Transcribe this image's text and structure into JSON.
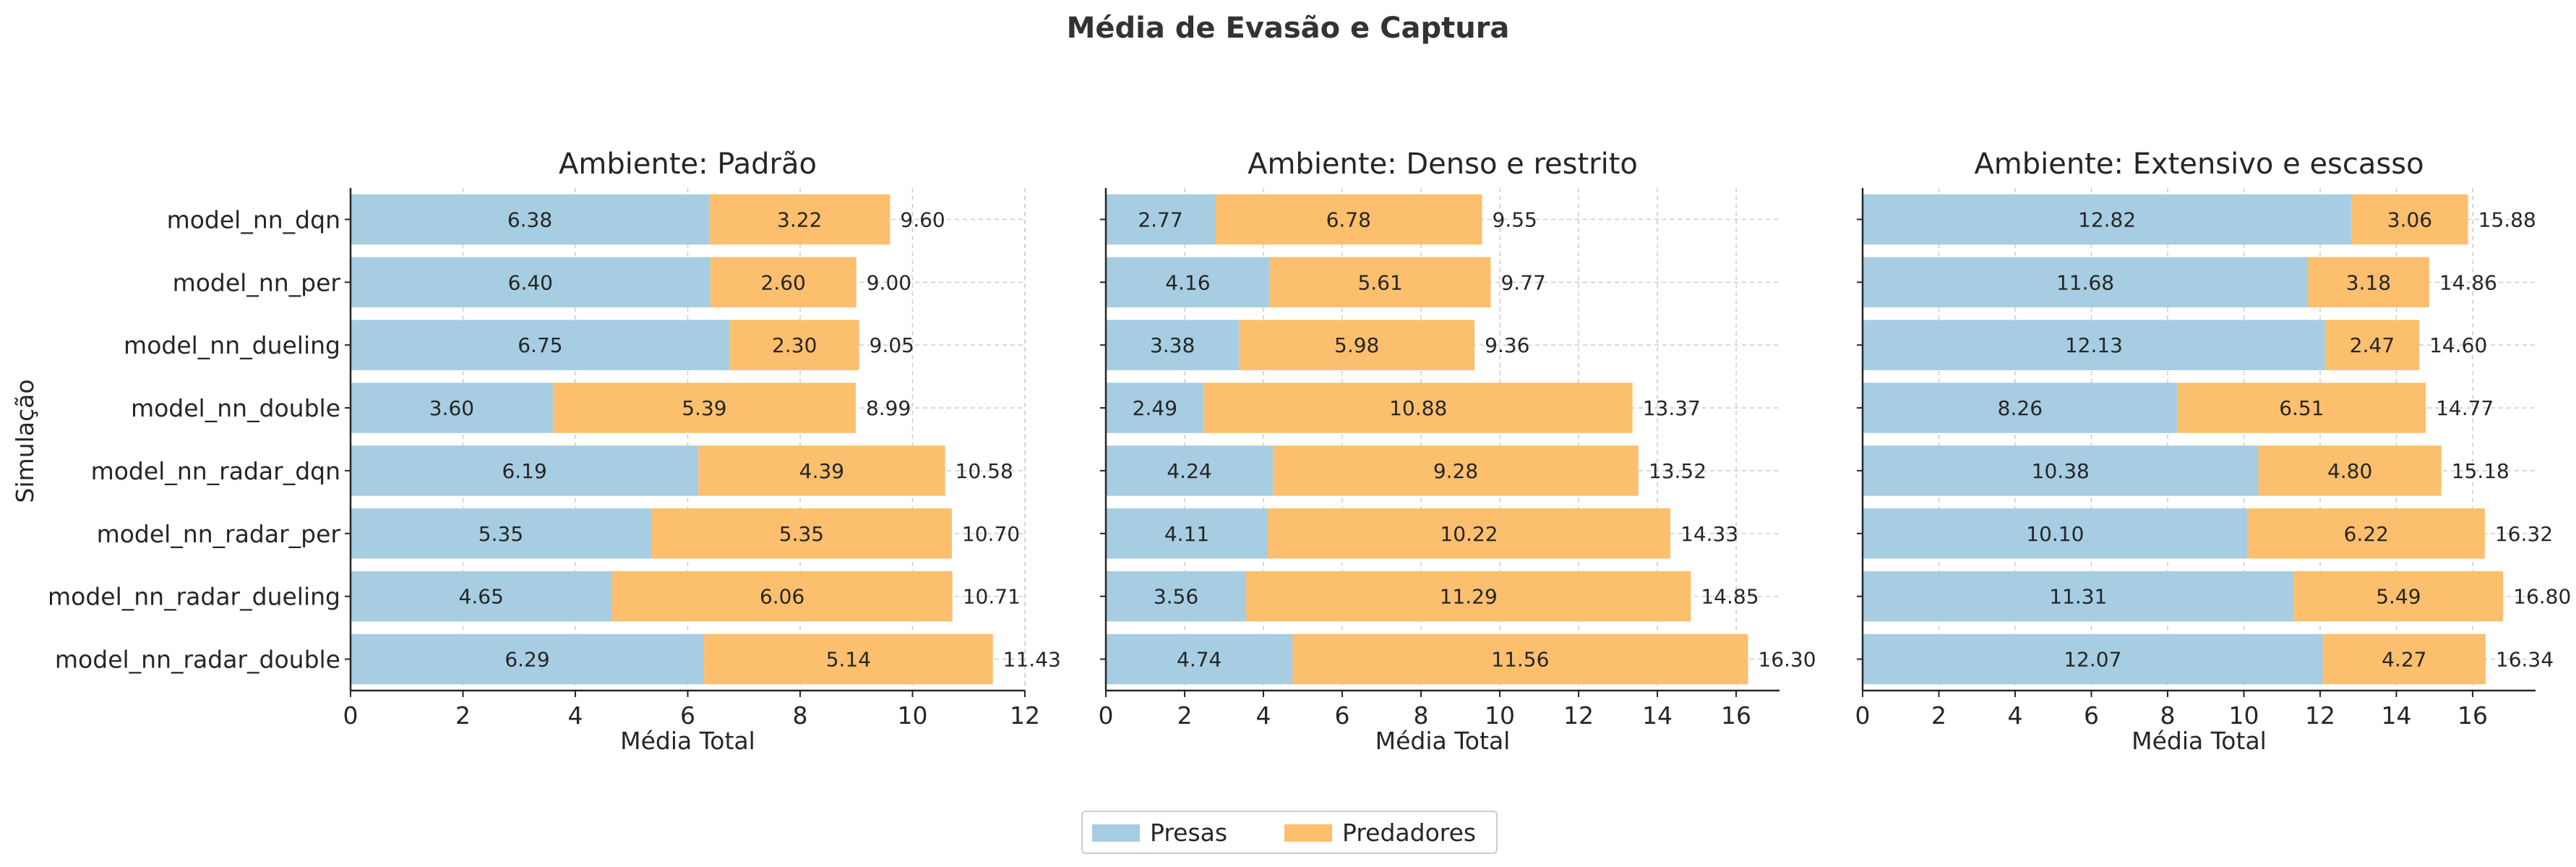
{
  "figure": {
    "title": "Média de Evasão e Captura",
    "ylabel": "Simulação",
    "legend": {
      "placement": "bottom-center",
      "entries": [
        {
          "label": "Presas",
          "color": "#a6cde2"
        },
        {
          "label": "Predadores",
          "color": "#fcbf6e"
        }
      ]
    }
  },
  "chart_data": [
    {
      "type": "bar",
      "orientation": "horizontal",
      "stacked": true,
      "title": "Ambiente: Padrão",
      "xlabel": "Média Total",
      "ylabel": "Simulação",
      "xlim": [
        0,
        12
      ],
      "xticks": [
        "0",
        "2",
        "4",
        "6",
        "8",
        "10",
        "12"
      ],
      "grid": true,
      "categories": [
        "model_nn_dqn",
        "model_nn_per",
        "model_nn_dueling",
        "model_nn_double",
        "model_nn_radar_dqn",
        "model_nn_radar_per",
        "model_nn_radar_dueling",
        "model_nn_radar_double"
      ],
      "series": [
        {
          "name": "Presas",
          "values": [
            6.38,
            6.4,
            6.75,
            3.6,
            6.19,
            5.35,
            4.65,
            6.29
          ],
          "labels": [
            "6.38",
            "6.40",
            "6.75",
            "3.60",
            "6.19",
            "5.35",
            "4.65",
            "6.29"
          ]
        },
        {
          "name": "Predadores",
          "values": [
            3.22,
            2.6,
            2.3,
            5.39,
            4.39,
            5.35,
            6.06,
            5.14
          ],
          "labels": [
            "3.22",
            "2.60",
            "2.30",
            "5.39",
            "4.39",
            "5.35",
            "6.06",
            "5.14"
          ]
        }
      ],
      "totals": [
        "9.60",
        "9.00",
        "9.05",
        "8.99",
        "10.58",
        "10.70",
        "10.71",
        "11.43"
      ]
    },
    {
      "type": "bar",
      "orientation": "horizontal",
      "stacked": true,
      "title": "Ambiente: Denso e restrito",
      "xlabel": "Média Total",
      "xlim": [
        0,
        17.1
      ],
      "xticks": [
        "0",
        "2",
        "4",
        "6",
        "8",
        "10",
        "12",
        "14",
        "16"
      ],
      "grid": true,
      "categories": [
        "model_nn_dqn",
        "model_nn_per",
        "model_nn_dueling",
        "model_nn_double",
        "model_nn_radar_dqn",
        "model_nn_radar_per",
        "model_nn_radar_dueling",
        "model_nn_radar_double"
      ],
      "series": [
        {
          "name": "Presas",
          "values": [
            2.77,
            4.16,
            3.38,
            2.49,
            4.24,
            4.11,
            3.56,
            4.74
          ],
          "labels": [
            "2.77",
            "4.16",
            "3.38",
            "2.49",
            "4.24",
            "4.11",
            "3.56",
            "4.74"
          ]
        },
        {
          "name": "Predadores",
          "values": [
            6.78,
            5.61,
            5.98,
            10.88,
            9.28,
            10.22,
            11.29,
            11.56
          ],
          "labels": [
            "6.78",
            "5.61",
            "5.98",
            "10.88",
            "9.28",
            "10.22",
            "11.29",
            "11.56"
          ]
        }
      ],
      "totals": [
        "9.55",
        "9.77",
        "9.36",
        "13.37",
        "13.52",
        "14.33",
        "14.85",
        "16.30"
      ]
    },
    {
      "type": "bar",
      "orientation": "horizontal",
      "stacked": true,
      "title": "Ambiente: Extensivo e escasso",
      "xlabel": "Média Total",
      "xlim": [
        0,
        17.65
      ],
      "xticks": [
        "0",
        "2",
        "4",
        "6",
        "8",
        "10",
        "12",
        "14",
        "16"
      ],
      "grid": true,
      "categories": [
        "model_nn_dqn",
        "model_nn_per",
        "model_nn_dueling",
        "model_nn_double",
        "model_nn_radar_dqn",
        "model_nn_radar_per",
        "model_nn_radar_dueling",
        "model_nn_radar_double"
      ],
      "series": [
        {
          "name": "Presas",
          "values": [
            12.82,
            11.68,
            12.13,
            8.26,
            10.38,
            10.1,
            11.31,
            12.07
          ],
          "labels": [
            "12.82",
            "11.68",
            "12.13",
            "8.26",
            "10.38",
            "10.10",
            "11.31",
            "12.07"
          ]
        },
        {
          "name": "Predadores",
          "values": [
            3.06,
            3.18,
            2.47,
            6.51,
            4.8,
            6.22,
            5.49,
            4.27
          ],
          "labels": [
            "3.06",
            "3.18",
            "2.47",
            "6.51",
            "4.80",
            "6.22",
            "5.49",
            "4.27"
          ]
        }
      ],
      "totals": [
        "15.88",
        "14.86",
        "14.60",
        "14.77",
        "15.18",
        "16.32",
        "16.80",
        "16.34"
      ]
    }
  ]
}
